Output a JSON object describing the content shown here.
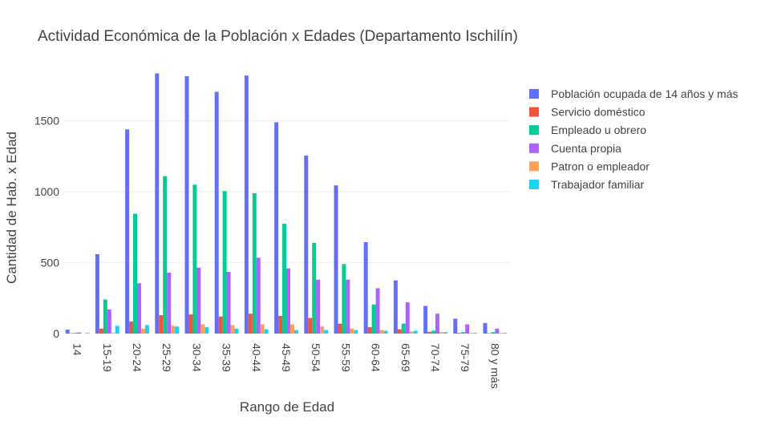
{
  "chart_data": {
    "type": "bar",
    "title": "Actividad Económica de la Población x Edades (Departamento Ischilín)",
    "xlabel": "Rango de Edad",
    "ylabel": "Cantidad de Hab. x Edad",
    "ylim": [
      0,
      1900
    ],
    "yticks": [
      0,
      500,
      1000,
      1500
    ],
    "grid": true,
    "legend_position": "top-right",
    "categories": [
      "14",
      "15-19",
      "20-24",
      "25-29",
      "30-34",
      "35-39",
      "40-44",
      "45-49",
      "50-54",
      "55-59",
      "60-64",
      "65-69",
      "70-74",
      "75-79",
      "80 y más"
    ],
    "series": [
      {
        "name": "Población ocupada de 14 años y más",
        "color": "#636efa",
        "values": [
          28,
          560,
          1440,
          1835,
          1815,
          1705,
          1820,
          1490,
          1255,
          1045,
          645,
          375,
          195,
          105,
          75
        ]
      },
      {
        "name": "Servicio doméstico",
        "color": "#ef553b",
        "values": [
          3,
          35,
          85,
          130,
          135,
          120,
          140,
          125,
          110,
          70,
          45,
          30,
          12,
          5,
          3
        ]
      },
      {
        "name": "Empleado u obrero",
        "color": "#00cc96",
        "values": [
          5,
          240,
          845,
          1110,
          1050,
          1005,
          990,
          775,
          640,
          490,
          205,
          70,
          20,
          10,
          10
        ]
      },
      {
        "name": "Cuenta propia",
        "color": "#ab63fa",
        "values": [
          8,
          170,
          355,
          430,
          465,
          435,
          535,
          460,
          380,
          380,
          320,
          220,
          140,
          65,
          35
        ]
      },
      {
        "name": "Patron o empleador",
        "color": "#ffa15a",
        "values": [
          0,
          5,
          35,
          55,
          65,
          60,
          65,
          65,
          50,
          35,
          25,
          15,
          10,
          5,
          5
        ]
      },
      {
        "name": "Trabajador familiar",
        "color": "#19d3f3",
        "values": [
          5,
          55,
          60,
          50,
          45,
          35,
          30,
          25,
          25,
          25,
          20,
          20,
          10,
          5,
          5
        ]
      }
    ]
  }
}
